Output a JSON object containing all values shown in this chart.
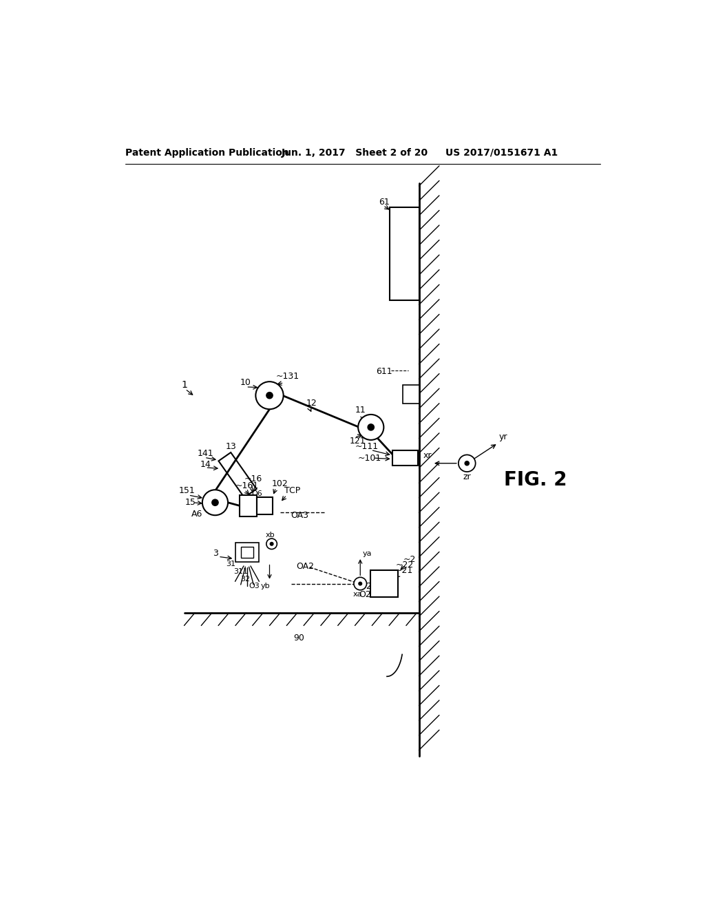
{
  "bg_color": "#ffffff",
  "title_left": "Patent Application Publication",
  "title_center": "Jun. 1, 2017   Sheet 2 of 20",
  "title_right": "US 2017/0151671 A1",
  "fig_label": "FIG. 2"
}
